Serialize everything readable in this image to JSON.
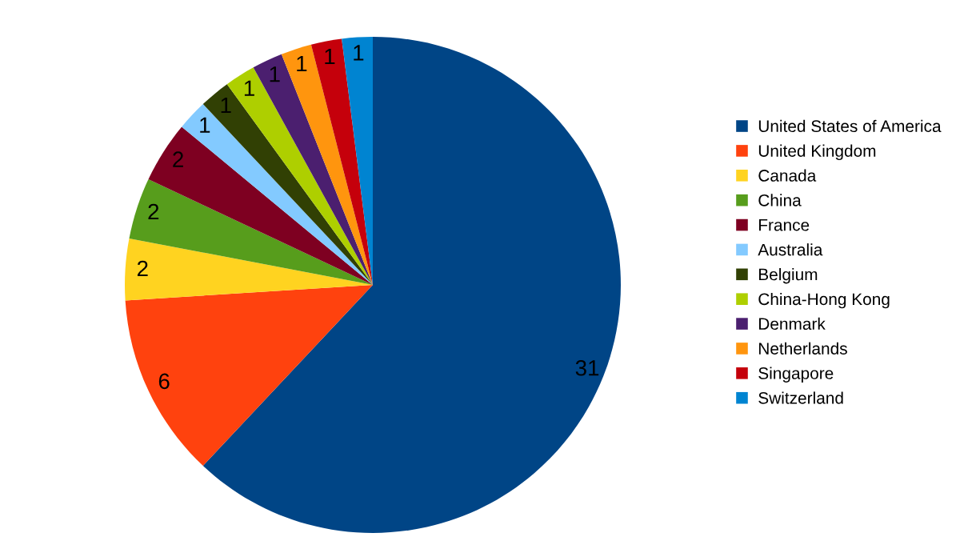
{
  "chart_data": {
    "type": "pie",
    "categories": [
      "United States of America",
      "United Kingdom",
      "Canada",
      "China",
      "France",
      "Australia",
      "Belgium",
      "China-Hong Kong",
      "Denmark",
      "Netherlands",
      "Singapore",
      "Switzerland"
    ],
    "values": [
      31,
      6,
      2,
      2,
      2,
      1,
      1,
      1,
      1,
      1,
      1,
      1
    ],
    "colors": [
      "#004586",
      "#ff420e",
      "#ffd320",
      "#579d1c",
      "#7e0021",
      "#83caff",
      "#314004",
      "#aecf00",
      "#4b1f6f",
      "#ff950e",
      "#c5000b",
      "#0084d1"
    ],
    "data_labels": true,
    "legend": "right"
  }
}
